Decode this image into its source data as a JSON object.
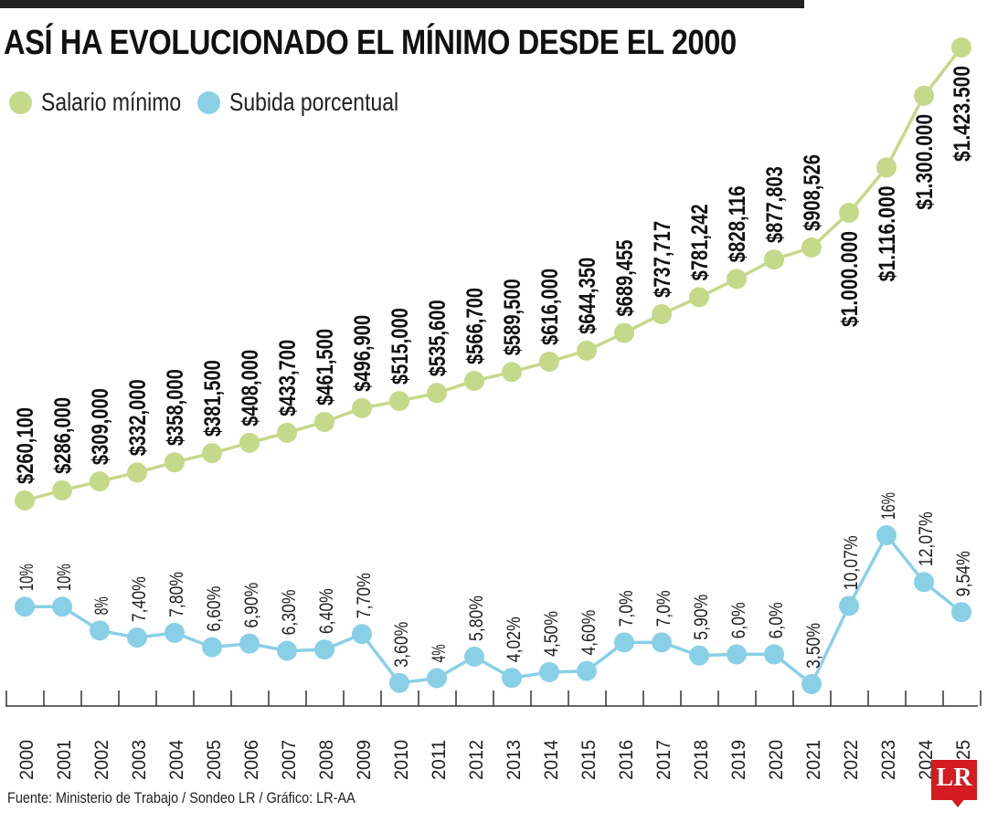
{
  "title": "ASÍ HA EVOLUCIONADO EL MÍNIMO DESDE EL 2000",
  "legend": [
    {
      "label": "Salario mínimo",
      "color": "#c5d98a"
    },
    {
      "label": "Subida porcentual",
      "color": "#89d0e6"
    }
  ],
  "source": "Fuente: Ministerio de Trabajo / Sondeo LR / Gráfico: LR-AA",
  "logo": {
    "text": "LR",
    "color": "#d31b21"
  },
  "chart_data": {
    "type": "line",
    "categories": [
      "2000",
      "2001",
      "2002",
      "2003",
      "2004",
      "2005",
      "2006",
      "2007",
      "2008",
      "2009",
      "2010",
      "2011",
      "2012",
      "2013",
      "2014",
      "2015",
      "2016",
      "2017",
      "2018",
      "2019",
      "2020",
      "2021",
      "2022",
      "2023",
      "2024",
      "2025"
    ],
    "series": [
      {
        "name": "Salario mínimo",
        "color": "#c5d98a",
        "values": [
          260100,
          286000,
          309000,
          332000,
          358000,
          381500,
          408000,
          433700,
          461500,
          496900,
          515000,
          535600,
          566700,
          589500,
          616000,
          644350,
          689455,
          737717,
          781242,
          828116,
          877803,
          908526,
          1000000,
          1116000,
          1300000,
          1423500
        ],
        "labels": [
          "$260,100",
          "$286,000",
          "$309,000",
          "$332,000",
          "$358,000",
          "$381,500",
          "$408,000",
          "$433,700",
          "$461,500",
          "$496,900",
          "$515,000",
          "$535,600",
          "$566,700",
          "$589,500",
          "$616,000",
          "$644,350",
          "$689,455",
          "$737,717",
          "$781,242",
          "$828,116",
          "$877,803",
          "$908,526",
          "$1.000.000",
          "$1.116.000",
          "$1.300.000",
          "$1.423.500"
        ]
      },
      {
        "name": "Subida porcentual",
        "color": "#89d0e6",
        "values": [
          10,
          10,
          8,
          7.4,
          7.8,
          6.6,
          6.9,
          6.3,
          6.4,
          7.7,
          3.6,
          4,
          5.8,
          4.02,
          4.5,
          4.6,
          7.0,
          7.0,
          5.9,
          6.0,
          6.0,
          3.5,
          10.07,
          16,
          12.07,
          9.54
        ],
        "labels": [
          "10%",
          "10%",
          "8%",
          "7,40%",
          "7,80%",
          "6,60%",
          "6,90%",
          "6,30%",
          "6,40%",
          "7,70%",
          "3,60%",
          "4%",
          "5,80%",
          "4,02%",
          "4,50%",
          "4,60%",
          "7,0%",
          "7,0%",
          "5,90%",
          "6,0%",
          "6,0%",
          "3,50%",
          "10,07%",
          "16%",
          "12,07%",
          "9,54%"
        ]
      }
    ]
  }
}
